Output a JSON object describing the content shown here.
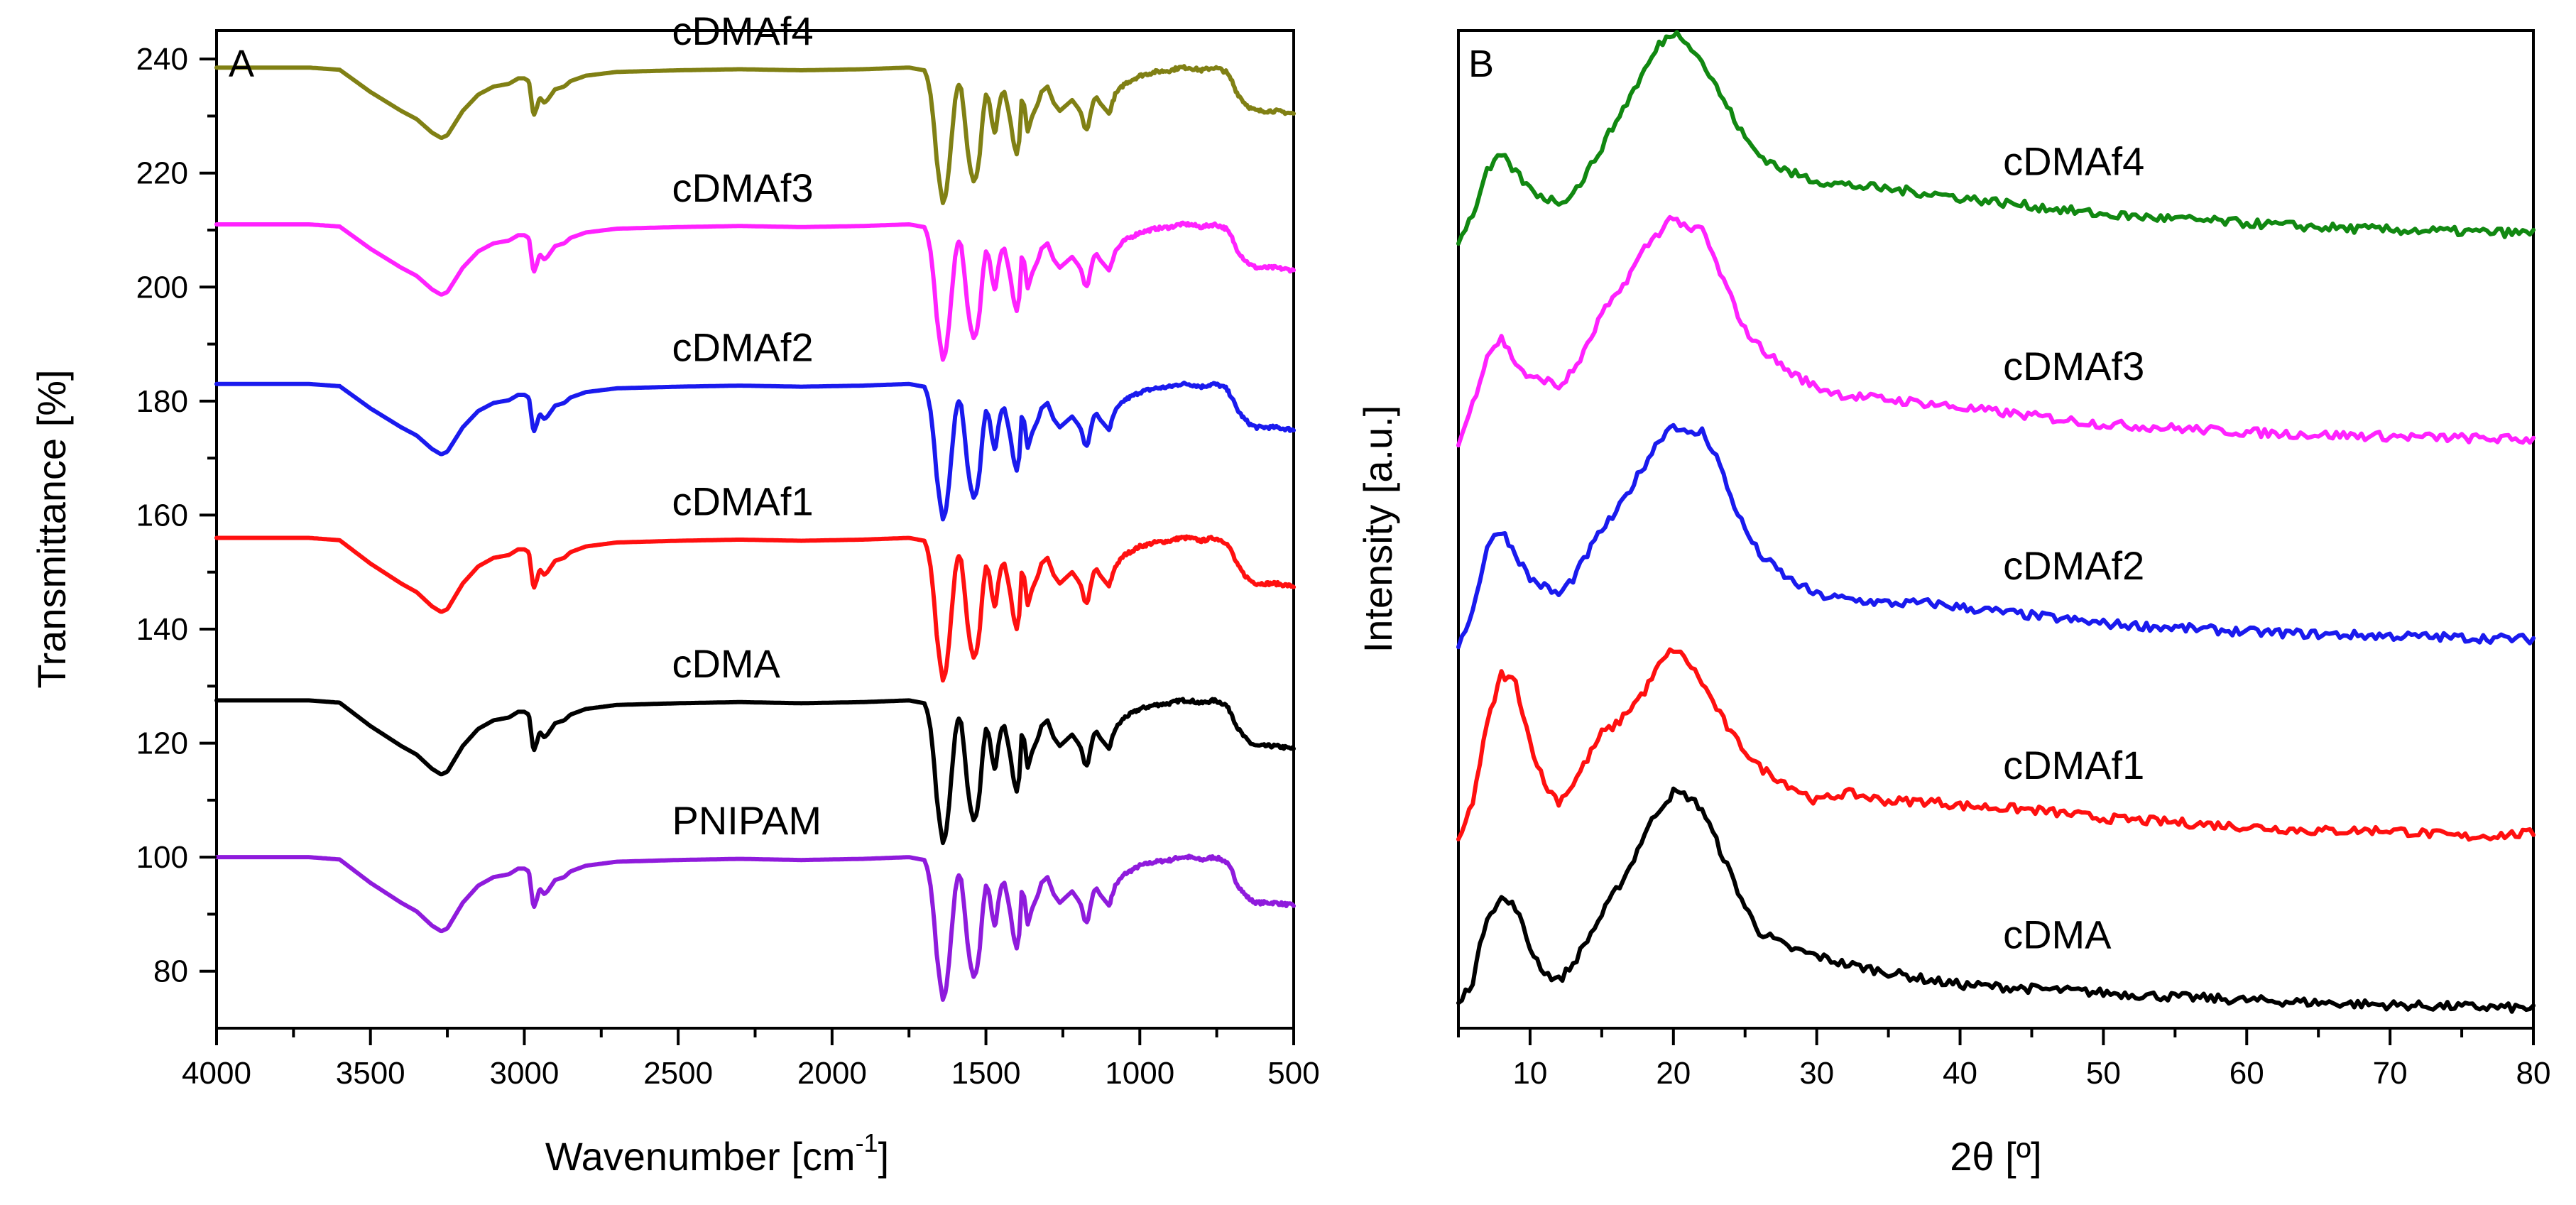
{
  "chart_data": [
    {
      "panel": "A",
      "type": "line",
      "xlabel": "Wavenumber [cm",
      "xlabel_sup": "-1",
      "xlabel_end": "]",
      "ylabel": "Transmittance [%]",
      "xlim": [
        4000,
        500
      ],
      "ylim": [
        70,
        245
      ],
      "x_ticks": [
        4000,
        3500,
        3000,
        2500,
        2000,
        1500,
        1000,
        500
      ],
      "y_ticks": [
        80,
        100,
        120,
        140,
        160,
        180,
        200,
        220,
        240
      ],
      "x": [
        4000,
        3700,
        3600,
        3500,
        3400,
        3350,
        3300,
        3270,
        3250,
        3200,
        3150,
        3100,
        3050,
        3020,
        3000,
        2985,
        2970,
        2960,
        2950,
        2935,
        2925,
        2900,
        2870,
        2850,
        2800,
        2700,
        2500,
        2300,
        2100,
        1900,
        1750,
        1700,
        1690,
        1680,
        1670,
        1660,
        1650,
        1640,
        1630,
        1620,
        1610,
        1600,
        1590,
        1580,
        1570,
        1560,
        1550,
        1540,
        1530,
        1520,
        1510,
        1500,
        1490,
        1480,
        1470,
        1460,
        1450,
        1440,
        1430,
        1420,
        1410,
        1400,
        1390,
        1385,
        1375,
        1365,
        1350,
        1330,
        1320,
        1300,
        1280,
        1260,
        1240,
        1220,
        1200,
        1190,
        1180,
        1170,
        1160,
        1150,
        1140,
        1130,
        1100,
        1080,
        1050,
        1000,
        950,
        900,
        870,
        840,
        800,
        760,
        740,
        720,
        700,
        690,
        680,
        660,
        640,
        620,
        600,
        560,
        500
      ],
      "base_shape": [
        0,
        0,
        -0.4,
        -4.5,
        -8,
        -9.5,
        -12,
        -13,
        -12.5,
        -8,
        -5,
        -3.5,
        -3,
        -2,
        -2,
        -2.5,
        -9,
        -7.5,
        -5.5,
        -6.5,
        -6,
        -4,
        -3.5,
        -2.5,
        -1.5,
        -0.8,
        -0.5,
        -0.3,
        -0.5,
        -0.3,
        0,
        -0.5,
        -2,
        -5,
        -10,
        -17,
        -21.5,
        -25,
        -23.5,
        -18.5,
        -12,
        -6,
        -3,
        -4,
        -9,
        -15,
        -19,
        -21,
        -20,
        -16,
        -9,
        -5,
        -6,
        -10,
        -12.5,
        -8,
        -5,
        -4.5,
        -7,
        -10,
        -14,
        -16,
        -13,
        -6,
        -7,
        -12,
        -9,
        -6.5,
        -4.5,
        -3.5,
        -6.5,
        -8,
        -7,
        -6,
        -7.5,
        -8.5,
        -11,
        -11.5,
        -8.5,
        -6,
        -5.5,
        -6.5,
        -8.5,
        -5,
        -3,
        -1.5,
        -0.8,
        -0.5,
        0,
        0,
        -0.5,
        0,
        -0.3,
        -0.8,
        -2.5,
        -4,
        -5,
        -6.5,
        -7.5,
        -8,
        -8,
        -8,
        -8.5
      ],
      "series": [
        {
          "name": "PNIPAM",
          "offset": 100,
          "amplitude": 1.0,
          "color": "#8f1bdc"
        },
        {
          "name": "cDMA",
          "offset": 127.5,
          "amplitude": 1.0,
          "color": "#000000"
        },
        {
          "name": "cDMAf1",
          "offset": 156,
          "amplitude": 1.0,
          "color": "#ff1010"
        },
        {
          "name": "cDMAf2",
          "offset": 183,
          "amplitude": 0.95,
          "color": "#1a1aee"
        },
        {
          "name": "cDMAf3",
          "offset": 211,
          "amplitude": 0.95,
          "color": "#ff22ff"
        },
        {
          "name": "cDMAf4",
          "offset": 238.5,
          "amplitude": 0.95,
          "color": "#808014"
        }
      ]
    },
    {
      "panel": "B",
      "type": "line",
      "xlabel": "2θ [º]",
      "ylabel": "Intensity [a.u.]",
      "xlim": [
        5,
        80
      ],
      "ylim": [
        0,
        100
      ],
      "x_ticks": [
        10,
        20,
        30,
        40,
        50,
        60,
        70,
        80
      ],
      "series": [
        {
          "name": "cDMA",
          "color": "#000000",
          "offset": 1.5,
          "scale": 0.82,
          "x": [
            5,
            6,
            7,
            8,
            9,
            10,
            11,
            12,
            13,
            14,
            15,
            16,
            17,
            18,
            19,
            20,
            21,
            22,
            23,
            24,
            25,
            26,
            28,
            30,
            32,
            35,
            38,
            40,
            45,
            50,
            55,
            60,
            65,
            70,
            75,
            80
          ],
          "y": [
            1,
            4,
            12,
            14,
            13,
            8,
            5,
            4,
            6,
            9,
            12,
            15,
            18,
            22,
            25,
            27,
            26.5,
            25,
            21,
            17,
            13,
            10,
            8,
            7,
            6,
            5,
            4,
            3.5,
            3,
            2.5,
            2,
            1.6,
            1.3,
            1,
            0.8,
            0.6
          ]
        },
        {
          "name": "cDMAf1",
          "color": "#ff1010",
          "offset": 18.5,
          "scale": 0.85,
          "x": [
            5,
            6,
            7,
            8,
            9,
            10,
            11,
            12,
            13,
            14,
            15,
            16,
            17,
            18,
            19,
            20,
            21,
            22,
            23,
            24,
            25,
            26,
            28,
            30,
            32,
            35,
            38,
            40,
            45,
            50,
            55,
            60,
            65,
            70,
            75,
            80
          ],
          "y": [
            0,
            5,
            14,
            20,
            19,
            12,
            7,
            5,
            7,
            10,
            13,
            14,
            16,
            18,
            21,
            23,
            21.5,
            19,
            16,
            13,
            11,
            9,
            7,
            5,
            6,
            5,
            5,
            4.5,
            4,
            3,
            2.5,
            2,
            1.5,
            1.6,
            0.8,
            1.2
          ]
        },
        {
          "name": "cDMAf2",
          "color": "#1a1aee",
          "offset": 38.5,
          "scale": 0.82,
          "x": [
            5,
            6,
            7,
            8,
            9,
            10,
            11,
            12,
            13,
            14,
            15,
            16,
            17,
            18,
            19,
            20,
            21,
            22,
            23,
            24,
            25,
            26,
            28,
            30,
            32,
            35,
            38,
            40,
            45,
            50,
            55,
            60,
            65,
            70,
            75,
            80
          ],
          "y": [
            0,
            4,
            12,
            14,
            11,
            8,
            7,
            6,
            8,
            11,
            14,
            16,
            19,
            22,
            25,
            27,
            25.5,
            26,
            23,
            18,
            14,
            11,
            8,
            6,
            5.5,
            5,
            5,
            4.5,
            3.5,
            2.5,
            2,
            1.5,
            1.2,
            1,
            0.8,
            0.6
          ]
        },
        {
          "name": "cDMAf3",
          "color": "#ff22ff",
          "offset": 58.5,
          "scale": 0.82,
          "x": [
            5,
            6,
            7,
            8,
            9,
            10,
            11,
            12,
            13,
            14,
            15,
            16,
            17,
            18,
            19,
            20,
            21,
            22,
            23,
            24,
            25,
            26,
            28,
            30,
            32,
            35,
            38,
            40,
            45,
            50,
            55,
            60,
            65,
            70,
            75,
            80
          ],
          "y": [
            0,
            5,
            11,
            13,
            10,
            8,
            8,
            7,
            9,
            12,
            16,
            18,
            21,
            24,
            26,
            28,
            26,
            26.5,
            22,
            18,
            14,
            12,
            9,
            7,
            6,
            5.5,
            5,
            4.5,
            3.5,
            2.5,
            2,
            1.5,
            1.2,
            1,
            0.8,
            0.6
          ]
        },
        {
          "name": "cDMAf4",
          "color": "#118811",
          "offset": 79,
          "scale": 0.85,
          "x": [
            5,
            6,
            7,
            8,
            9,
            10,
            11,
            12,
            13,
            14,
            15,
            16,
            17,
            18,
            19,
            20,
            21,
            22,
            23,
            24,
            25,
            26,
            28,
            30,
            32,
            35,
            38,
            40,
            45,
            50,
            55,
            60,
            65,
            70,
            75,
            80
          ],
          "y": [
            0,
            3,
            8,
            10,
            8,
            6,
            5,
            4.5,
            5.5,
            8,
            11,
            14,
            17,
            20,
            23,
            24.5,
            23.5,
            21,
            18,
            15,
            12,
            10,
            8,
            7,
            6.5,
            6,
            5.5,
            5,
            4,
            3,
            2.5,
            2,
            1.5,
            1.2,
            1,
            0.8
          ]
        }
      ]
    }
  ]
}
